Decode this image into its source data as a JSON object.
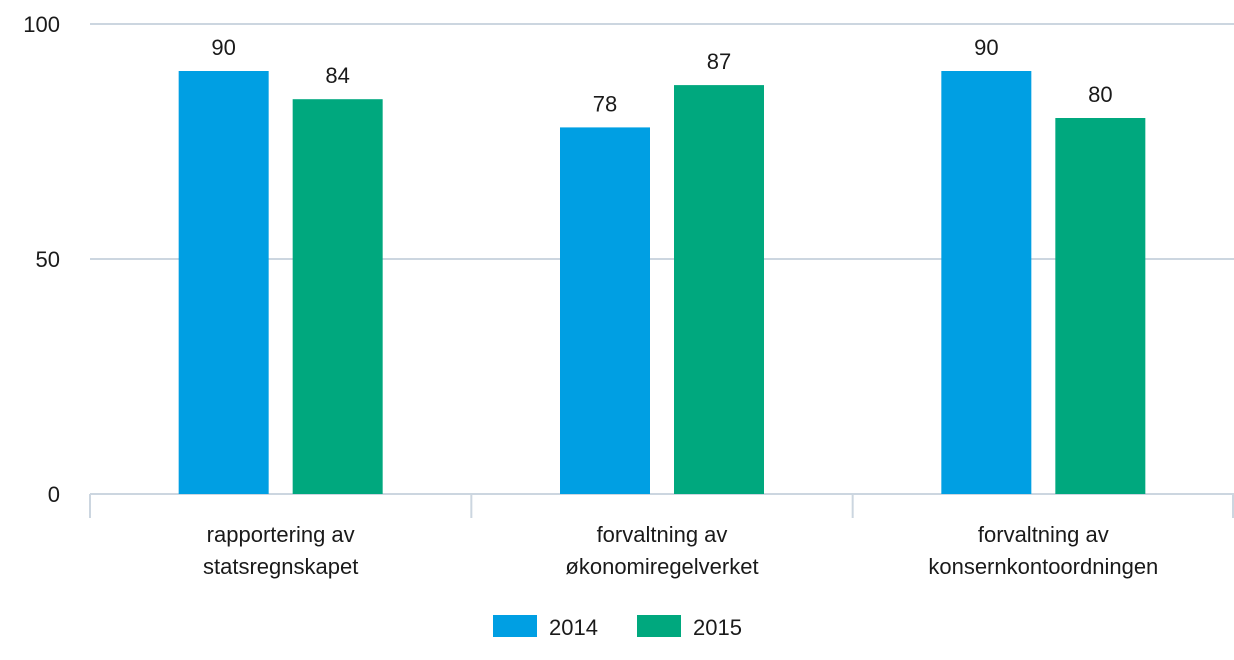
{
  "chart_data": {
    "type": "bar",
    "categories": [
      [
        "rapportering av",
        "statsregnskapet"
      ],
      [
        "forvaltning av",
        "økonomiregelverket"
      ],
      [
        "forvaltning av",
        "konsernkontoordningen"
      ]
    ],
    "series": [
      {
        "name": "2014",
        "values": [
          90,
          78,
          90
        ],
        "color": "#009fe3"
      },
      {
        "name": "2015",
        "values": [
          84,
          87,
          80
        ],
        "color": "#00a87e"
      }
    ],
    "ylim": [
      0,
      100
    ],
    "yticks": [
      "0",
      "50",
      "100"
    ],
    "title": "",
    "xlabel": "",
    "ylabel": "",
    "grid": true,
    "data_labels": true,
    "legend_position": "bottom-center"
  }
}
